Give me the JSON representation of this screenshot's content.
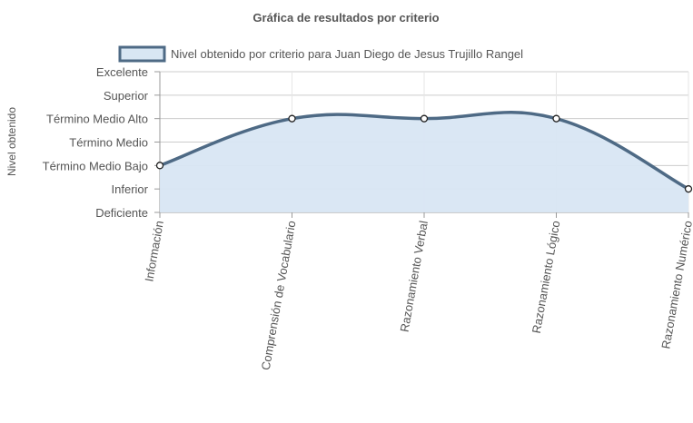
{
  "chart_data": {
    "type": "area",
    "title": "Gráfica de resultados por criterio",
    "ylabel": "Nivel obtenido",
    "xlabel": "",
    "y_levels": [
      "Deficiente",
      "Inferior",
      "Término Medio Bajo",
      "Término Medio",
      "Término Medio Alto",
      "Superior",
      "Excelente"
    ],
    "ylim": [
      0,
      6
    ],
    "categories": [
      "Información",
      "Comprensión de Vocabulario",
      "Razonamiento Verbal",
      "Razonamiento Lógico",
      "Razonamiento Numérico"
    ],
    "series": [
      {
        "name": "Nivel obtenido por criterio para Juan Diego de Jesus Trujillo Rangel",
        "values": [
          2,
          4,
          4,
          4,
          1
        ]
      }
    ],
    "grid": true,
    "legend_position": "top",
    "colors": {
      "line": "#4e6a85",
      "fill": "#d8e6f3",
      "point_fill": "#ffffff",
      "point_stroke": "#222222"
    }
  }
}
